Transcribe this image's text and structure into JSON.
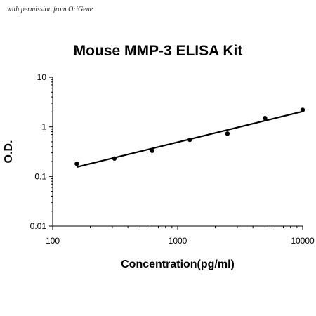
{
  "watermark": "with permission from OriGene",
  "chart_data": {
    "type": "scatter",
    "title": "Mouse MMP-3 ELISA Kit",
    "xlabel": "Concentration(pg/ml)",
    "ylabel": "O.D.",
    "xscale": "log",
    "yscale": "log",
    "xlim": [
      100,
      10000
    ],
    "ylim": [
      0.01,
      10
    ],
    "xticks": [
      100,
      1000,
      10000
    ],
    "xtick_labels": [
      "100",
      "1000",
      "10000"
    ],
    "yticks": [
      10,
      1,
      0.1,
      0.01
    ],
    "ytick_labels": [
      "10",
      "1",
      "0.1",
      "0.01"
    ],
    "grid": false,
    "legend": "none",
    "series": [
      {
        "points": [
          {
            "x": 156,
            "y": 0.18
          },
          {
            "x": 312,
            "y": 0.23
          },
          {
            "x": 625,
            "y": 0.33
          },
          {
            "x": 1250,
            "y": 0.55
          },
          {
            "x": 2500,
            "y": 0.73
          },
          {
            "x": 5000,
            "y": 1.5
          },
          {
            "x": 10000,
            "y": 2.2
          }
        ]
      }
    ],
    "fit_line": {
      "x_start": 156,
      "y_start": 0.155,
      "x_end": 10000,
      "y_end": 2.05
    },
    "colors": {
      "points": "#000000",
      "line": "#000000",
      "axis": "#000000"
    }
  }
}
